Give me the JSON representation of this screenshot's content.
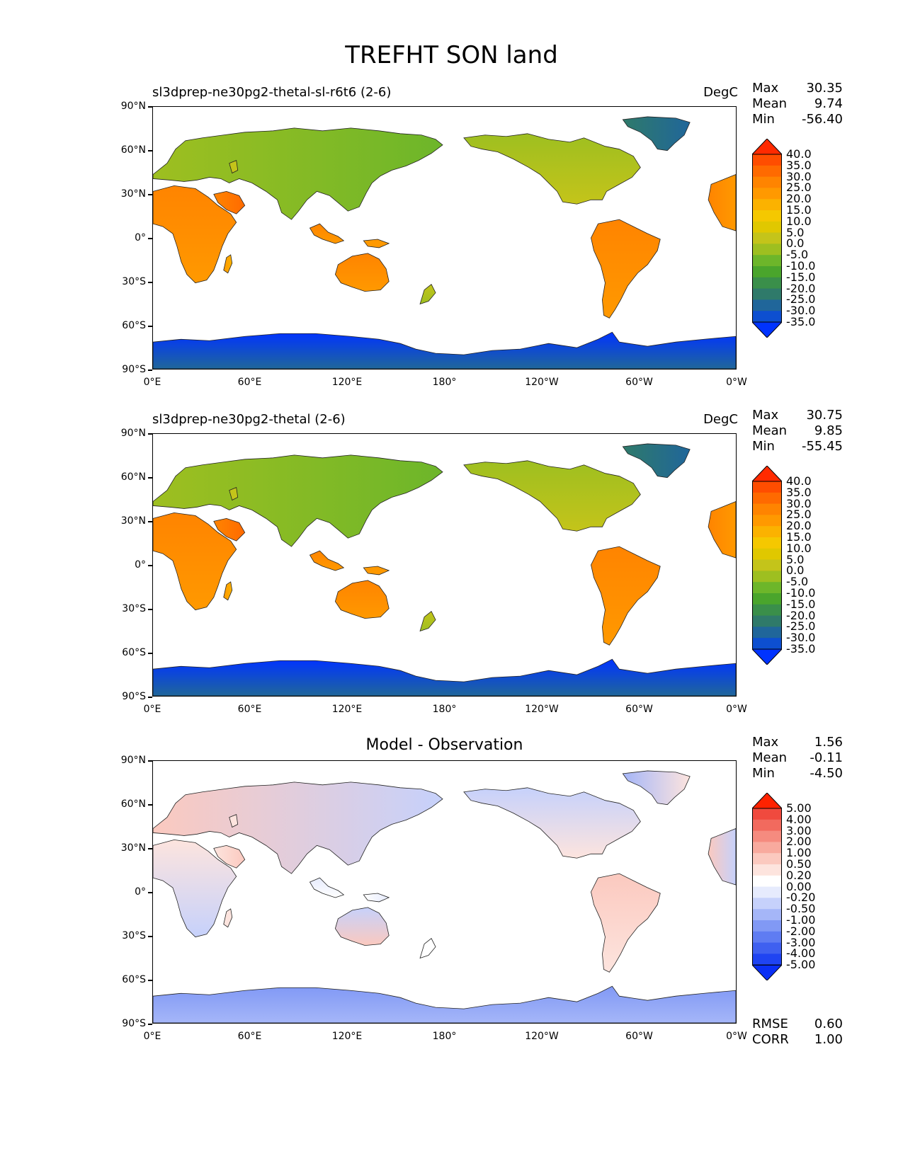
{
  "figure": {
    "title": "TREFHT SON land"
  },
  "lat_ticks": [
    "90°N",
    "60°N",
    "30°N",
    "0°",
    "30°S",
    "60°S",
    "90°S"
  ],
  "lon_ticks": [
    "0°E",
    "60°E",
    "120°E",
    "180°",
    "120°W",
    "60°W",
    "0°W"
  ],
  "panels": [
    {
      "title_left": "sl3dprep-ne30pg2-thetal-sl-r6t6 (2-6)",
      "title_right": "DegC",
      "title_center": "",
      "stats": [
        {
          "label": "Max",
          "value": "30.35"
        },
        {
          "label": "Mean",
          "value": "9.74"
        },
        {
          "label": "Min",
          "value": "-56.40"
        }
      ],
      "colorbar_levels": [
        "40.0",
        "35.0",
        "30.0",
        "25.0",
        "20.0",
        "15.0",
        "10.0",
        "5.0",
        "0.0",
        "-5.0",
        "-10.0",
        "-15.0",
        "-20.0",
        "-25.0",
        "-30.0",
        "-35.0"
      ],
      "colorbar_colors": [
        "#ff2a00",
        "#ff4d00",
        "#ff6a00",
        "#ff8400",
        "#ff9900",
        "#fbb200",
        "#f5c800",
        "#e0c800",
        "#c4c41a",
        "#9ebf20",
        "#6db62a",
        "#4aa52c",
        "#3a8f4a",
        "#2f7a6a",
        "#20669a",
        "#0d4fd0",
        "#0033ff"
      ],
      "extend_top": "#ff2a00",
      "extend_bottom": "#0033ff",
      "map_type": "field",
      "bottom_stats": []
    },
    {
      "title_left": "sl3dprep-ne30pg2-thetal (2-6)",
      "title_right": "DegC",
      "title_center": "",
      "stats": [
        {
          "label": "Max",
          "value": "30.75"
        },
        {
          "label": "Mean",
          "value": "9.85"
        },
        {
          "label": "Min",
          "value": "-55.45"
        }
      ],
      "colorbar_levels": [
        "40.0",
        "35.0",
        "30.0",
        "25.0",
        "20.0",
        "15.0",
        "10.0",
        "5.0",
        "0.0",
        "-5.0",
        "-10.0",
        "-15.0",
        "-20.0",
        "-25.0",
        "-30.0",
        "-35.0"
      ],
      "colorbar_colors": [
        "#ff2a00",
        "#ff4d00",
        "#ff6a00",
        "#ff8400",
        "#ff9900",
        "#fbb200",
        "#f5c800",
        "#e0c800",
        "#c4c41a",
        "#9ebf20",
        "#6db62a",
        "#4aa52c",
        "#3a8f4a",
        "#2f7a6a",
        "#20669a",
        "#0d4fd0",
        "#0033ff"
      ],
      "extend_top": "#ff2a00",
      "extend_bottom": "#0033ff",
      "map_type": "field",
      "bottom_stats": []
    },
    {
      "title_left": "",
      "title_right": "",
      "title_center": "Model - Observation",
      "stats": [
        {
          "label": "Max",
          "value": "1.56"
        },
        {
          "label": "Mean",
          "value": "-0.11"
        },
        {
          "label": "Min",
          "value": "-4.50"
        }
      ],
      "colorbar_levels": [
        "5.00",
        "4.00",
        "3.00",
        "2.00",
        "1.00",
        "0.50",
        "0.20",
        "0.00",
        "-0.20",
        "-0.50",
        "-1.00",
        "-2.00",
        "-3.00",
        "-4.00",
        "-5.00"
      ],
      "colorbar_colors": [
        "#ff2200",
        "#f04a3e",
        "#f26a5e",
        "#f58b7f",
        "#f8aa9e",
        "#fbc9bf",
        "#fde4de",
        "#ffffff",
        "#e6ebfd",
        "#c6d1fb",
        "#a5b6f8",
        "#8199f5",
        "#5f7cf2",
        "#3f60f0",
        "#1f44f2",
        "#0a2ff5"
      ],
      "extend_top": "#ff2200",
      "extend_bottom": "#0a2ff5",
      "map_type": "diff",
      "bottom_stats": [
        {
          "label": "RMSE",
          "value": "0.60"
        },
        {
          "label": "CORR",
          "value": "1.00"
        }
      ]
    }
  ]
}
